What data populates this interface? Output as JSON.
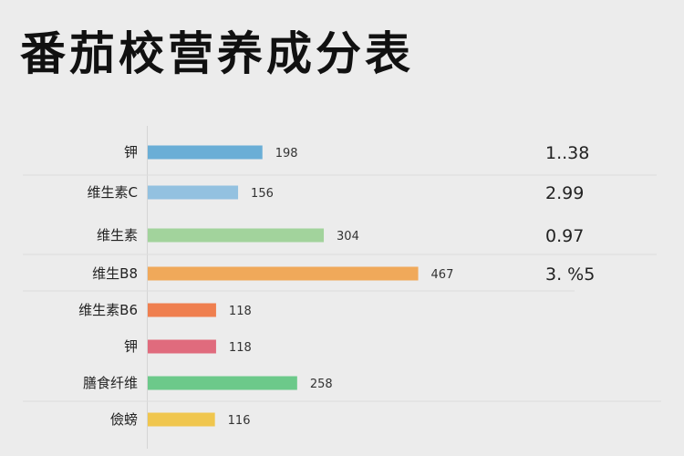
{
  "title": "番茄校营养成分表",
  "chart_data": {
    "type": "bar",
    "orientation": "horizontal",
    "categories": [
      "钾",
      "维生素C",
      "维生素",
      "维生B8",
      "维生素B6",
      "钾",
      "膳食纤维",
      "儉螃"
    ],
    "values": [
      198,
      156,
      304,
      467,
      118,
      118,
      258,
      116
    ],
    "value_labels": [
      "198",
      "156",
      "304",
      "467",
      "118",
      "118",
      "258",
      "116"
    ],
    "bar_colors": [
      "#6aaed6",
      "#93c1e0",
      "#a2d39c",
      "#f0a95a",
      "#ef7f4f",
      "#e06b7d",
      "#6cc98a",
      "#f0c64e"
    ],
    "label_colors": [
      "#222222",
      "#222222",
      "#2e8b2e",
      "#222222",
      "#7a1a4a",
      "#222222",
      "#222222",
      "#222222"
    ],
    "side_values": [
      "1..38",
      "2.99",
      "0.97",
      "3. %5"
    ],
    "title": "番茄校营养成分表",
    "xlabel": "",
    "ylabel": "",
    "grid": false
  }
}
